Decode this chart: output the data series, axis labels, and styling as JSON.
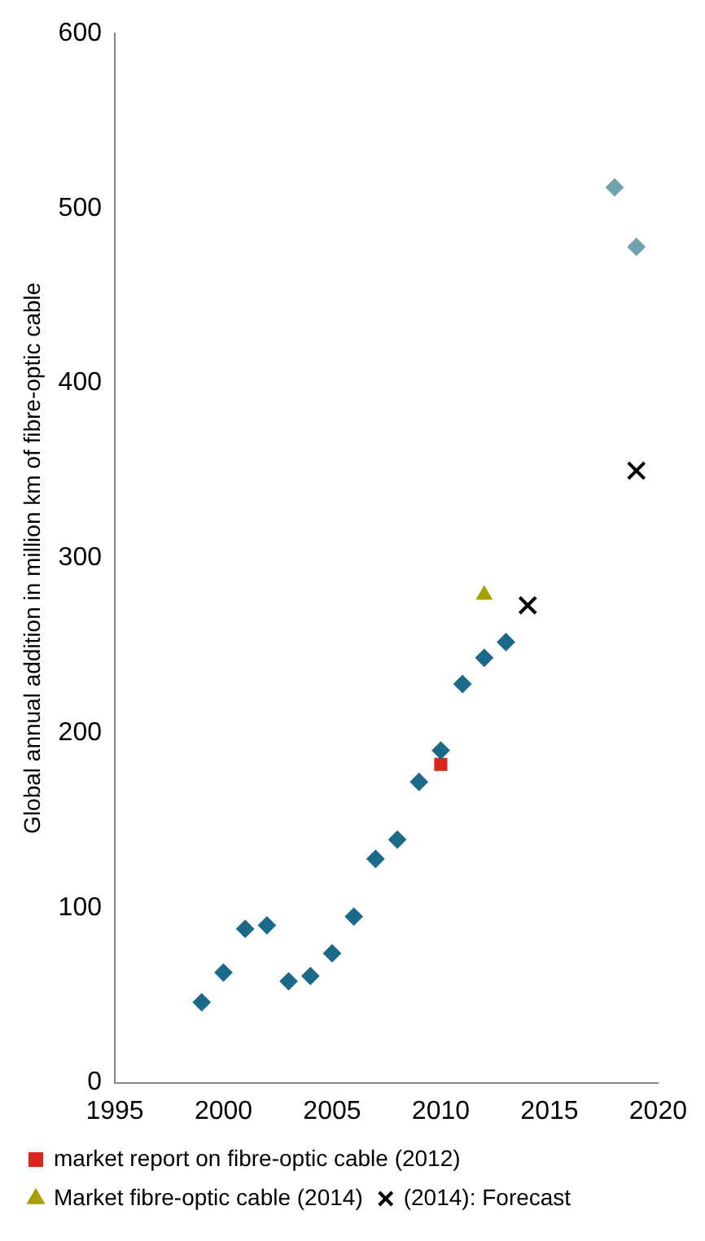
{
  "chart_data": {
    "type": "scatter",
    "ylabel": "Global annual addition in million km of fibre-optic cable",
    "xlim": [
      1995,
      2020
    ],
    "xticks": [
      1995,
      2000,
      2005,
      2010,
      2015,
      2020
    ],
    "ylim": [
      0,
      600
    ],
    "yticks": [
      0,
      100,
      200,
      300,
      400,
      500,
      600
    ],
    "grid": false,
    "legend": "bottom",
    "series": [
      {
        "color": "#1b6a8a",
        "marker": "diamond",
        "x": [
          1999,
          2000,
          2001,
          2002,
          2003,
          2004,
          2005,
          2006,
          2007,
          2008,
          2009,
          2010,
          2011,
          2012,
          2013
        ],
        "values": [
          46,
          63,
          88,
          90,
          58,
          61,
          74,
          95,
          128,
          139,
          172,
          190,
          228,
          243,
          252
        ]
      },
      {
        "name": "market report on fibre-optic cable (2012)",
        "color": "#d7261e",
        "marker": "square",
        "x": [
          2010
        ],
        "values": [
          182
        ]
      },
      {
        "name": "Market fibre-optic cable (2014)",
        "color": "#a6a000",
        "marker": "triangle",
        "x": [
          2012
        ],
        "values": [
          279
        ]
      },
      {
        "name": "(2014): Forecast",
        "color": "#000000",
        "marker": "cross",
        "x": [
          2014,
          2019
        ],
        "values": [
          273,
          350
        ]
      },
      {
        "color": "#6fa3b0",
        "marker": "diamond",
        "x": [
          2018,
          2019
        ],
        "values": [
          512,
          478
        ]
      }
    ]
  }
}
